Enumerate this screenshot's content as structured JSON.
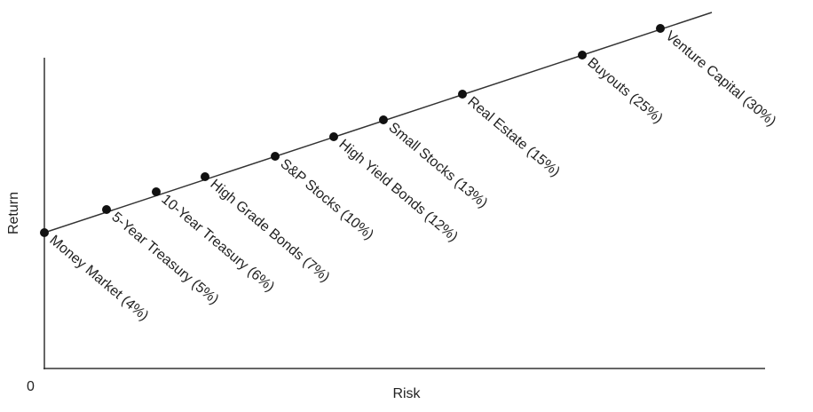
{
  "axis": {
    "origin": "0",
    "x_label": "Risk",
    "y_label": "Return"
  },
  "nodes": [
    {
      "label": "Money Market (4%)"
    },
    {
      "label": "5-Year Treasury (5%)"
    },
    {
      "label": "10-Year Treasury (6%)"
    },
    {
      "label": "High Grade Bonds (7%)"
    },
    {
      "label": "S&P Stocks (10%)"
    },
    {
      "label": "High Yield Bonds (12%)"
    },
    {
      "label": "Small Stocks (13%)"
    },
    {
      "label": "Real Estate (15%)"
    },
    {
      "label": "Buyouts (25%)"
    },
    {
      "label": "Venture Capital (30%)"
    }
  ]
}
